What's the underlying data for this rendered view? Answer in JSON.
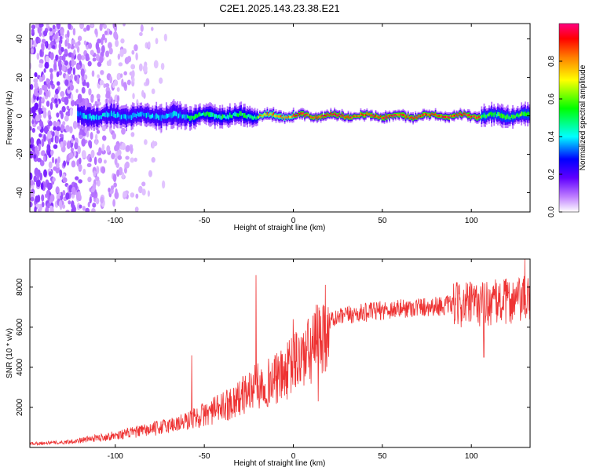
{
  "title": "C2E1.2025.143.23.38.E21",
  "chart_data": [
    {
      "type": "heatmap",
      "xlabel": "Height of straight line (km)",
      "ylabel": "Frequency (Hz)",
      "xlim": [
        -148,
        133
      ],
      "ylim": [
        -50,
        48
      ],
      "xticks": [
        -100,
        -50,
        0,
        50,
        100
      ],
      "yticks": [
        -40,
        -20,
        0,
        20,
        40
      ],
      "colorbar": {
        "label": "Normalized spectral amplitude",
        "range": [
          0.0,
          1.0
        ],
        "ticks": [
          0.0,
          0.2,
          0.4,
          0.6,
          0.8
        ],
        "tick_labels": [
          "0.0",
          "0.2",
          "0.4",
          "0.6",
          "0.8"
        ],
        "colormap": [
          "#ffffff",
          "#c080ff",
          "#6000ff",
          "#0000ff",
          "#00ffff",
          "#00ff00",
          "#ffff00",
          "#ff8000",
          "#ff0000",
          "#ff0080"
        ]
      },
      "band": {
        "center_hz": 0,
        "segments": [
          {
            "x": [
              -122,
              -60
            ],
            "halfwidth_hz": 6,
            "peak": 0.45
          },
          {
            "x": [
              -60,
              -20
            ],
            "halfwidth_hz": 5,
            "peak": 0.55
          },
          {
            "x": [
              -20,
              0
            ],
            "halfwidth_hz": 3,
            "peak": 0.8
          },
          {
            "x": [
              0,
              105
            ],
            "halfwidth_hz": 2.5,
            "peak": 0.95
          },
          {
            "x": [
              105,
              133
            ],
            "halfwidth_hz": 5,
            "peak": 0.6
          }
        ],
        "noise_region_x": [
          -148,
          -70
        ]
      },
      "grid": false
    },
    {
      "type": "line",
      "xlabel": "Height of straight line (km)",
      "ylabel": "SNR (10 * v/v)",
      "xlim": [
        -148,
        133
      ],
      "ylim": [
        0,
        9400
      ],
      "xticks": [
        -100,
        -50,
        0,
        50,
        100
      ],
      "yticks": [
        2000,
        4000,
        6000,
        8000
      ],
      "color": "#ee3333",
      "trend": {
        "x": [
          -148,
          -130,
          -120,
          -100,
          -80,
          -60,
          -40,
          -30,
          -22,
          -15,
          -5,
          0,
          10,
          20,
          30,
          50,
          70,
          90,
          110,
          133
        ],
        "y": [
          200,
          250,
          350,
          600,
          900,
          1300,
          2000,
          2500,
          3000,
          3200,
          3600,
          4200,
          4800,
          6300,
          6600,
          6850,
          7000,
          7100,
          7200,
          7400
        ]
      },
      "spikes": [
        {
          "x": -21,
          "y": 8600
        },
        {
          "x": -57,
          "y": 4600
        },
        {
          "x": 0,
          "y": 6400
        },
        {
          "x": 14,
          "y": 2300
        },
        {
          "x": 107,
          "y": 4500
        },
        {
          "x": 130,
          "y": 9400
        }
      ],
      "grid": false
    }
  ]
}
